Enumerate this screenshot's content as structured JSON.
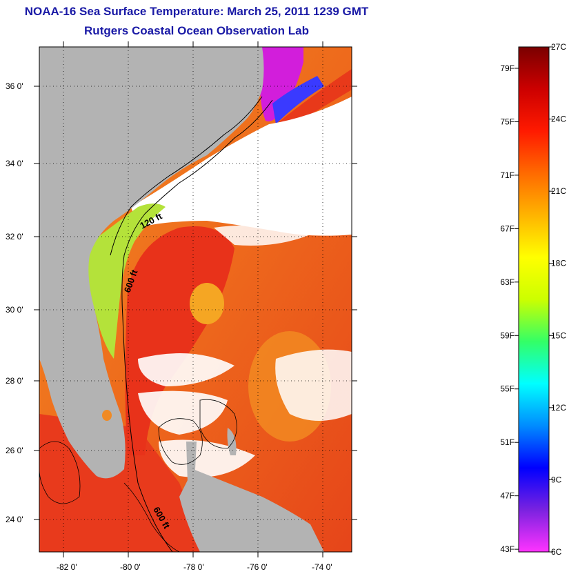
{
  "title": {
    "line1": "NOAA-16 Sea Surface Temperature:  March 25, 2011 1239 GMT",
    "line2": "Rutgers Coastal Ocean Observation Lab"
  },
  "map": {
    "lat_labels": [
      "36 0'",
      "34 0'",
      "32 0'",
      "30 0'",
      "28 0'",
      "26 0'",
      "24 0'"
    ],
    "lon_labels": [
      "-82 0'",
      "-80 0'",
      "-78 0'",
      "-76 0'",
      "-74 0'"
    ],
    "contours": [
      "120 ft",
      "600 ft",
      "600 ft"
    ],
    "colors": {
      "land": "#b3b3b3",
      "cloud": "#ffffff",
      "gulf_stream": "#e8391a",
      "warm_ocean": "#f07a1e",
      "shelf_green": "#a6e04a",
      "cold_magenta": "#e01ee0"
    }
  },
  "colorbar": {
    "fahrenheit_labels": [
      "79F",
      "75F",
      "71F",
      "67F",
      "63F",
      "59F",
      "55F",
      "51F",
      "47F",
      "43F"
    ],
    "celsius_labels": [
      "27C",
      "24C",
      "21C",
      "18C",
      "15C",
      "12C",
      "9C",
      "6C"
    ],
    "range_c": [
      6,
      27
    ],
    "gradient_stops": [
      "#ff33ff",
      "#7a22e0",
      "#0000ff",
      "#008cff",
      "#00ffff",
      "#33ff66",
      "#ccff00",
      "#ffff00",
      "#ffb400",
      "#ff6a00",
      "#ff1a00",
      "#cc0000",
      "#7a0000"
    ]
  }
}
